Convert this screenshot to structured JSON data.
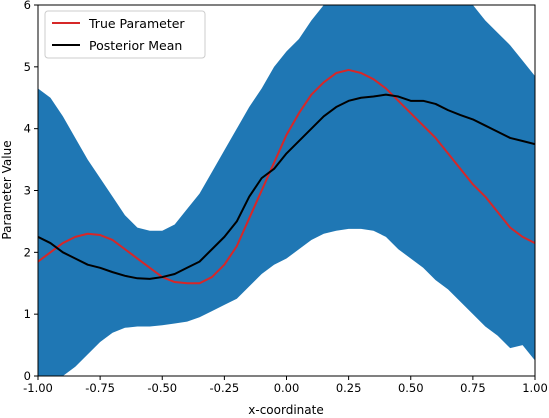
{
  "chart_data": {
    "type": "line",
    "xlabel": "x-coordinate",
    "ylabel": "Parameter Value",
    "xlim": [
      -1.0,
      1.0
    ],
    "ylim": [
      0,
      6
    ],
    "x_ticks": [
      "-1.00",
      "-0.75",
      "-0.50",
      "-0.25",
      "0.00",
      "0.25",
      "0.50",
      "0.75",
      "1.00"
    ],
    "y_ticks": [
      "0",
      "1",
      "2",
      "3",
      "4",
      "5",
      "6"
    ],
    "grid": false,
    "legend_position": "top-left",
    "band": {
      "color": "#1f77b4",
      "x": [
        -1.0,
        -0.95,
        -0.9,
        -0.85,
        -0.8,
        -0.75,
        -0.7,
        -0.65,
        -0.6,
        -0.55,
        -0.5,
        -0.45,
        -0.4,
        -0.35,
        -0.3,
        -0.25,
        -0.2,
        -0.15,
        -0.1,
        -0.05,
        0.0,
        0.05,
        0.1,
        0.15,
        0.2,
        0.25,
        0.3,
        0.35,
        0.4,
        0.45,
        0.5,
        0.55,
        0.6,
        0.65,
        0.7,
        0.75,
        0.8,
        0.85,
        0.9,
        0.95,
        1.0
      ],
      "upper": [
        4.65,
        4.5,
        4.2,
        3.85,
        3.5,
        3.2,
        2.9,
        2.6,
        2.4,
        2.35,
        2.35,
        2.45,
        2.7,
        2.95,
        3.3,
        3.65,
        4.0,
        4.35,
        4.65,
        5.0,
        5.25,
        5.45,
        5.75,
        6.0,
        6.2,
        6.5,
        6.7,
        6.85,
        6.9,
        6.9,
        6.85,
        6.75,
        6.6,
        6.4,
        6.2,
        6.0,
        5.75,
        5.55,
        5.35,
        5.1,
        4.85
      ],
      "lower": [
        0.0,
        -0.15,
        0.0,
        0.15,
        0.35,
        0.55,
        0.7,
        0.78,
        0.8,
        0.8,
        0.82,
        0.85,
        0.88,
        0.95,
        1.05,
        1.15,
        1.25,
        1.45,
        1.65,
        1.8,
        1.9,
        2.05,
        2.2,
        2.3,
        2.35,
        2.38,
        2.38,
        2.35,
        2.25,
        2.05,
        1.9,
        1.75,
        1.55,
        1.4,
        1.2,
        1.0,
        0.8,
        0.65,
        0.45,
        0.5,
        0.25
      ]
    },
    "series": [
      {
        "name": "True Parameter",
        "color": "#d62728",
        "x": [
          -1.0,
          -0.95,
          -0.9,
          -0.85,
          -0.8,
          -0.75,
          -0.7,
          -0.65,
          -0.6,
          -0.55,
          -0.5,
          -0.45,
          -0.4,
          -0.35,
          -0.3,
          -0.25,
          -0.2,
          -0.15,
          -0.1,
          -0.05,
          0.0,
          0.05,
          0.1,
          0.15,
          0.2,
          0.25,
          0.3,
          0.35,
          0.4,
          0.45,
          0.5,
          0.55,
          0.6,
          0.65,
          0.7,
          0.75,
          0.8,
          0.85,
          0.9,
          0.95,
          1.0
        ],
        "values": [
          1.85,
          2.0,
          2.15,
          2.25,
          2.3,
          2.28,
          2.2,
          2.05,
          1.9,
          1.75,
          1.6,
          1.52,
          1.5,
          1.5,
          1.6,
          1.8,
          2.1,
          2.55,
          3.0,
          3.45,
          3.9,
          4.25,
          4.55,
          4.75,
          4.9,
          4.95,
          4.9,
          4.8,
          4.65,
          4.45,
          4.25,
          4.05,
          3.85,
          3.6,
          3.35,
          3.1,
          2.9,
          2.65,
          2.4,
          2.25,
          2.15
        ]
      },
      {
        "name": "Posterior Mean",
        "color": "#000000",
        "x": [
          -1.0,
          -0.95,
          -0.9,
          -0.85,
          -0.8,
          -0.75,
          -0.7,
          -0.65,
          -0.6,
          -0.55,
          -0.5,
          -0.45,
          -0.4,
          -0.35,
          -0.3,
          -0.25,
          -0.2,
          -0.15,
          -0.1,
          -0.05,
          0.0,
          0.05,
          0.1,
          0.15,
          0.2,
          0.25,
          0.3,
          0.35,
          0.4,
          0.45,
          0.5,
          0.55,
          0.6,
          0.65,
          0.7,
          0.75,
          0.8,
          0.85,
          0.9,
          0.95,
          1.0
        ],
        "values": [
          2.25,
          2.15,
          2.0,
          1.9,
          1.8,
          1.75,
          1.68,
          1.62,
          1.58,
          1.57,
          1.6,
          1.65,
          1.75,
          1.85,
          2.05,
          2.25,
          2.5,
          2.9,
          3.2,
          3.35,
          3.6,
          3.8,
          4.0,
          4.2,
          4.35,
          4.45,
          4.5,
          4.52,
          4.55,
          4.52,
          4.45,
          4.45,
          4.4,
          4.3,
          4.22,
          4.15,
          4.05,
          3.95,
          3.85,
          3.8,
          3.75
        ]
      }
    ]
  }
}
